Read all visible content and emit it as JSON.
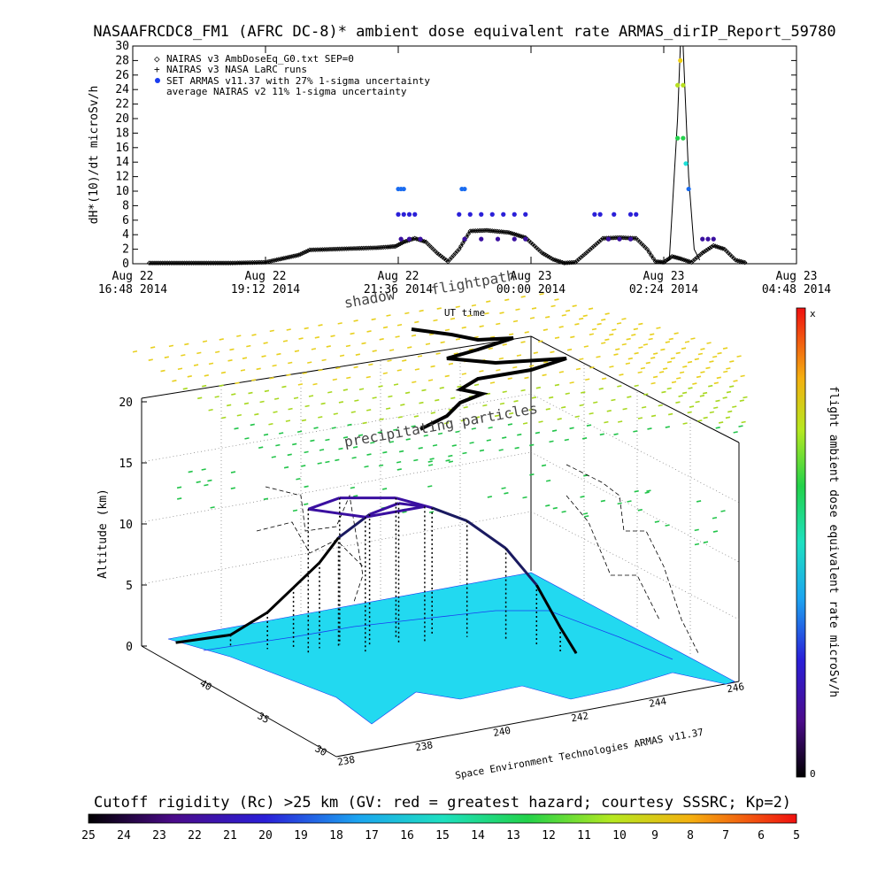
{
  "title": "NASAAFRCDC8_FM1 (AFRC DC-8)* ambient dose equivalent rate ARMAS_dirIP_Report_59780",
  "chart_data": [
    {
      "type": "scatter",
      "ylabel": "dH*(10)/dt microSv/h",
      "xlabel": "UT time",
      "ylim": [
        0,
        30
      ],
      "y_ticks": [
        "0",
        "2",
        "4",
        "6",
        "8",
        "10",
        "12",
        "14",
        "16",
        "18",
        "20",
        "22",
        "24",
        "26",
        "28",
        "30"
      ],
      "x_ticks": [
        {
          "top": "Aug 22",
          "bottom": "16:48 2014"
        },
        {
          "top": "Aug 22",
          "bottom": "19:12 2014"
        },
        {
          "top": "Aug 22",
          "bottom": "21:36 2014"
        },
        {
          "top": "Aug 23",
          "bottom": "00:00 2014"
        },
        {
          "top": "Aug 23",
          "bottom": "02:24 2014"
        },
        {
          "top": "Aug 23",
          "bottom": "04:48 2014"
        }
      ],
      "legend": [
        {
          "symbol": "◇",
          "text": "NAIRAS v3 AmbDoseEq_G0.txt SEP=0"
        },
        {
          "symbol": "+",
          "text": "NAIRAS v3 NASA LaRC runs"
        },
        {
          "symbol": "●",
          "text": "SET ARMAS v11.37 with 27% 1-sigma uncertainty"
        },
        {
          "symbol": "",
          "text": "average NAIRAS v2 11% 1-sigma uncertainty"
        }
      ],
      "legend_position": "top-left",
      "x_hours": [
        0,
        2.4,
        4.8,
        7.2,
        9.6,
        12
      ],
      "series": [
        {
          "kind": "model",
          "points": [
            [
              0.3,
              0.1
            ],
            [
              1.0,
              0.1
            ],
            [
              1.8,
              0.1
            ],
            [
              2.4,
              0.2
            ],
            [
              3.0,
              1.2
            ],
            [
              3.2,
              1.9
            ],
            [
              3.6,
              2.0
            ],
            [
              4.0,
              2.1
            ],
            [
              4.4,
              2.2
            ],
            [
              4.6,
              2.3
            ],
            [
              4.75,
              2.4
            ],
            [
              4.9,
              3.0
            ],
            [
              5.1,
              3.5
            ],
            [
              5.3,
              3.0
            ],
            [
              5.5,
              1.5
            ],
            [
              5.7,
              0.3
            ],
            [
              5.9,
              2.0
            ],
            [
              6.1,
              4.5
            ],
            [
              6.4,
              4.6
            ],
            [
              6.8,
              4.3
            ],
            [
              7.1,
              3.6
            ],
            [
              7.4,
              1.5
            ],
            [
              7.6,
              0.6
            ],
            [
              7.8,
              0.1
            ],
            [
              8.0,
              0.2
            ],
            [
              8.2,
              1.5
            ],
            [
              8.5,
              3.5
            ],
            [
              8.8,
              3.6
            ],
            [
              9.1,
              3.5
            ],
            [
              9.3,
              2.0
            ],
            [
              9.45,
              0.3
            ],
            [
              9.6,
              0.2
            ],
            [
              9.75,
              1.0
            ],
            [
              9.9,
              0.7
            ],
            [
              10.1,
              0.2
            ],
            [
              10.3,
              1.5
            ],
            [
              10.5,
              2.5
            ],
            [
              10.7,
              2.0
            ],
            [
              10.9,
              0.5
            ],
            [
              11.1,
              0.1
            ]
          ]
        },
        {
          "kind": "measured",
          "points": [
            [
              4.8,
              10.3
            ],
            [
              4.85,
              10.3
            ],
            [
              4.9,
              10.3
            ],
            [
              4.8,
              6.8
            ],
            [
              4.9,
              6.8
            ],
            [
              5.0,
              6.8
            ],
            [
              5.1,
              6.8
            ],
            [
              4.85,
              3.4
            ],
            [
              5.0,
              3.4
            ],
            [
              5.2,
              3.4
            ],
            [
              5.95,
              10.3
            ],
            [
              6.0,
              10.3
            ],
            [
              5.9,
              6.8
            ],
            [
              6.1,
              6.8
            ],
            [
              6.3,
              6.8
            ],
            [
              6.5,
              6.8
            ],
            [
              6.7,
              6.8
            ],
            [
              6.9,
              6.8
            ],
            [
              7.1,
              6.8
            ],
            [
              6.0,
              3.4
            ],
            [
              6.3,
              3.4
            ],
            [
              6.6,
              3.4
            ],
            [
              6.9,
              3.4
            ],
            [
              7.1,
              3.4
            ],
            [
              8.35,
              6.8
            ],
            [
              8.45,
              6.8
            ],
            [
              8.6,
              3.4
            ],
            [
              8.8,
              3.4
            ],
            [
              9.0,
              3.4
            ],
            [
              8.7,
              6.8
            ],
            [
              9.0,
              6.8
            ],
            [
              9.1,
              6.8
            ],
            [
              9.9,
              28.0
            ],
            [
              9.85,
              24.6
            ],
            [
              9.95,
              24.6
            ],
            [
              9.85,
              17.3
            ],
            [
              9.95,
              17.3
            ],
            [
              10.0,
              13.8
            ],
            [
              10.05,
              10.3
            ],
            [
              10.3,
              3.4
            ],
            [
              10.4,
              3.4
            ],
            [
              10.5,
              3.4
            ]
          ]
        },
        {
          "kind": "peak_line",
          "points": [
            [
              9.5,
              0
            ],
            [
              9.7,
              0.5
            ],
            [
              9.85,
              20
            ],
            [
              9.9,
              30
            ],
            [
              9.95,
              30
            ],
            [
              10.05,
              12
            ],
            [
              10.15,
              2
            ],
            [
              10.25,
              0.5
            ]
          ]
        }
      ]
    },
    {
      "type": "scatter",
      "ylabel": "Altitude (km)",
      "z_ticks": [
        "0",
        "5",
        "10",
        "15",
        "20"
      ],
      "lat_ticks": [
        "30",
        "35",
        "40"
      ],
      "lon_ticks": [
        "238",
        "238",
        "240",
        "242",
        "244",
        "246"
      ],
      "annotations": [
        "shadow",
        "flightpath",
        "precipitating particles"
      ],
      "note": "Space Environment Technologies ARMAS v11.37",
      "flight_track": [
        [
          238.6,
          39.8,
          0
        ],
        [
          239.3,
          38.8,
          1
        ],
        [
          239.8,
          38.2,
          3
        ],
        [
          240.2,
          37.9,
          5
        ],
        [
          240.6,
          37.6,
          7
        ],
        [
          240.9,
          37.4,
          9
        ],
        [
          241.4,
          37.1,
          10.8
        ],
        [
          241.9,
          36.9,
          11.5
        ],
        [
          242.3,
          36.6,
          11.2
        ],
        [
          241.2,
          36.8,
          11.0
        ],
        [
          240.3,
          37.4,
          11.8
        ],
        [
          241.0,
          37.6,
          12.0
        ],
        [
          242.0,
          37.3,
          11.5
        ],
        [
          242.6,
          37.0,
          10.5
        ],
        [
          243.1,
          36.5,
          9.5
        ],
        [
          243.6,
          35.8,
          7.5
        ],
        [
          243.9,
          35.0,
          5.0
        ],
        [
          244.1,
          34.3,
          2.0
        ],
        [
          244.3,
          34.0,
          0
        ]
      ]
    },
    {
      "type": "colorbar",
      "label": "flight ambient dose equivalent rate microSv/h",
      "top_label": "x",
      "bottom_label": "0"
    },
    {
      "type": "colorbar",
      "label": "Cutoff rigidity (Rc) >25 km (GV: red = greatest hazard; courtesy SSSRC; Kp=2)",
      "ticks": [
        "25",
        "24",
        "23",
        "22",
        "21",
        "20",
        "19",
        "18",
        "17",
        "16",
        "15",
        "14",
        "13",
        "12",
        "11",
        "10",
        "9",
        "8",
        "7",
        "6",
        "5"
      ]
    }
  ],
  "colors": {
    "model_series": "#000000",
    "measured_low": "#3a0fa0",
    "measured_mid": "#1a6cf0",
    "measured_high": "#f0d010",
    "ground_cyan": "#22d9f0",
    "grid_dots": "#666666"
  }
}
